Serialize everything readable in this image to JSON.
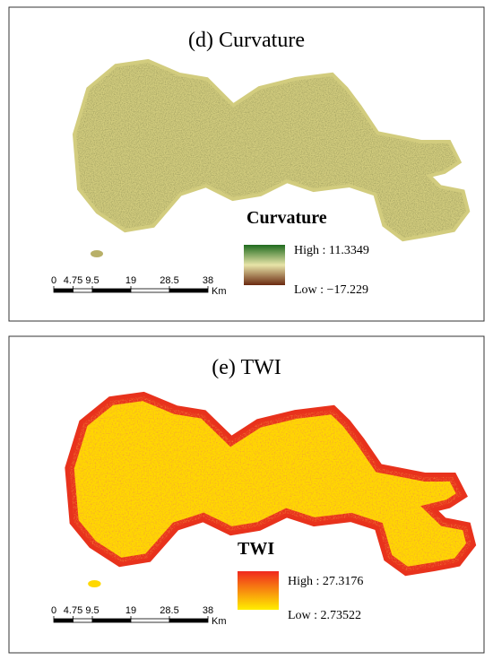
{
  "panels": [
    {
      "title": "(d) Curvature",
      "legend_title": "Curvature",
      "high_label": "High : 11.3349",
      "low_label": "Low : −17.229",
      "scale_ticks": [
        0,
        4.75,
        9.5,
        19,
        28.5,
        38
      ],
      "scale_unit": "Km"
    },
    {
      "title": "(e) TWI",
      "legend_title": "TWI",
      "high_label": "High : 27.3176",
      "low_label": "Low : 2.73522",
      "scale_ticks": [
        0,
        4.75,
        9.5,
        19,
        28.5,
        38
      ],
      "scale_unit": "Km"
    }
  ]
}
